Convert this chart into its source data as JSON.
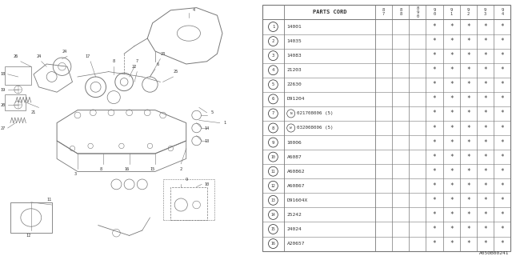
{
  "title": "A050B00241",
  "table_header": "PARTS CORD",
  "year_labels": [
    "8\n7",
    "8\n8",
    "8\n9\n0",
    "9\n0",
    "9\n1",
    "9\n2",
    "9\n3",
    "9\n4"
  ],
  "rows": [
    {
      "num": "1",
      "part": "14001",
      "prefix": null,
      "stars": [
        0,
        0,
        0,
        1,
        1,
        1,
        1,
        1
      ]
    },
    {
      "num": "2",
      "part": "14035",
      "prefix": null,
      "stars": [
        0,
        0,
        0,
        1,
        1,
        1,
        1,
        1
      ]
    },
    {
      "num": "3",
      "part": "14083",
      "prefix": null,
      "stars": [
        0,
        0,
        0,
        1,
        1,
        1,
        1,
        1
      ]
    },
    {
      "num": "4",
      "part": "21203",
      "prefix": null,
      "stars": [
        0,
        0,
        0,
        1,
        1,
        1,
        1,
        1
      ]
    },
    {
      "num": "5",
      "part": "22630",
      "prefix": null,
      "stars": [
        0,
        0,
        0,
        1,
        1,
        1,
        1,
        1
      ]
    },
    {
      "num": "6",
      "part": "D91204",
      "prefix": null,
      "stars": [
        0,
        0,
        0,
        1,
        1,
        1,
        1,
        1
      ]
    },
    {
      "num": "7",
      "part": "021708006 (5)",
      "prefix": "N",
      "stars": [
        0,
        0,
        0,
        1,
        1,
        1,
        1,
        1
      ]
    },
    {
      "num": "8",
      "part": "032008006 (5)",
      "prefix": "W",
      "stars": [
        0,
        0,
        0,
        1,
        1,
        1,
        1,
        1
      ]
    },
    {
      "num": "9",
      "part": "10006",
      "prefix": null,
      "stars": [
        0,
        0,
        0,
        1,
        1,
        1,
        1,
        1
      ]
    },
    {
      "num": "10",
      "part": "A6087",
      "prefix": null,
      "stars": [
        0,
        0,
        0,
        1,
        1,
        1,
        1,
        1
      ]
    },
    {
      "num": "11",
      "part": "A60862",
      "prefix": null,
      "stars": [
        0,
        0,
        0,
        1,
        1,
        1,
        1,
        1
      ]
    },
    {
      "num": "12",
      "part": "A60867",
      "prefix": null,
      "stars": [
        0,
        0,
        0,
        1,
        1,
        1,
        1,
        1
      ]
    },
    {
      "num": "13",
      "part": "D91604X",
      "prefix": null,
      "stars": [
        0,
        0,
        0,
        1,
        1,
        1,
        1,
        1
      ]
    },
    {
      "num": "14",
      "part": "25242",
      "prefix": null,
      "stars": [
        0,
        0,
        0,
        1,
        1,
        1,
        1,
        1
      ]
    },
    {
      "num": "15",
      "part": "24024",
      "prefix": null,
      "stars": [
        0,
        0,
        0,
        1,
        1,
        1,
        1,
        1
      ]
    },
    {
      "num": "16",
      "part": "A20657",
      "prefix": null,
      "stars": [
        0,
        0,
        0,
        1,
        1,
        1,
        1,
        1
      ]
    }
  ],
  "bg_color": "#ffffff",
  "line_color": "#777777",
  "text_color": "#333333",
  "diagram_color": "#777777"
}
